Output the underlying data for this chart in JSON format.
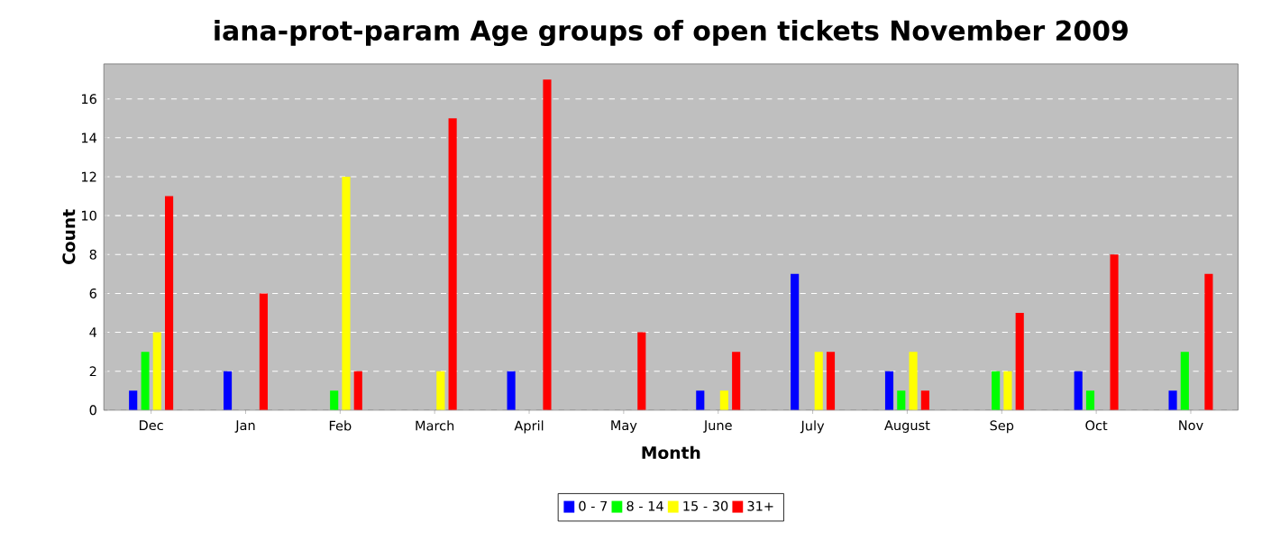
{
  "chart_data": {
    "type": "bar",
    "title": "iana-prot-param Age groups of open tickets November 2009",
    "xlabel": "Month",
    "ylabel": "Count",
    "categories": [
      "Dec",
      "Jan",
      "Feb",
      "March",
      "April",
      "May",
      "June",
      "July",
      "August",
      "Sep",
      "Oct",
      "Nov"
    ],
    "series": [
      {
        "name": "0 - 7",
        "color": "#0000ff",
        "values": [
          1,
          2,
          0,
          0,
          2,
          0,
          1,
          7,
          2,
          0,
          2,
          1
        ]
      },
      {
        "name": "8 - 14",
        "color": "#00ff00",
        "values": [
          3,
          0,
          1,
          0,
          0,
          0,
          0,
          0,
          1,
          2,
          1,
          3
        ]
      },
      {
        "name": "15 - 30",
        "color": "#ffff00",
        "values": [
          4,
          0,
          12,
          2,
          0,
          0,
          1,
          3,
          3,
          2,
          0,
          0
        ]
      },
      {
        "name": "31+",
        "color": "#ff0000",
        "values": [
          11,
          6,
          2,
          15,
          17,
          4,
          3,
          3,
          1,
          5,
          8,
          7
        ]
      }
    ],
    "ylim": [
      0,
      17.8
    ],
    "yticks": [
      0,
      2,
      4,
      6,
      8,
      10,
      12,
      14,
      16
    ],
    "grid": "y",
    "legend": "bottom"
  }
}
